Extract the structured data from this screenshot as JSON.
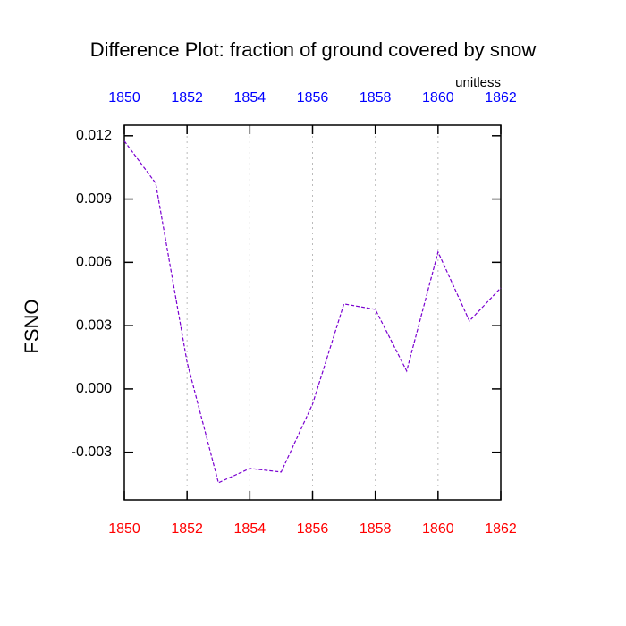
{
  "chart_data": {
    "type": "line",
    "title": "Difference Plot: fraction of ground covered by snow",
    "subtitle": "unitless",
    "y_label": "FSNO",
    "x": [
      1850,
      1851,
      1852,
      1853,
      1854,
      1855,
      1856,
      1857,
      1858,
      1859,
      1860,
      1861,
      1862
    ],
    "series": [
      {
        "color": "#7a00d0",
        "values": [
          0.01175,
          0.00975,
          0.00127,
          -0.00445,
          -0.00377,
          -0.00394,
          -0.00072,
          0.00403,
          0.00377,
          0.00085,
          0.00649,
          0.00322,
          0.00479
        ]
      }
    ],
    "xlim": [
      1850,
      1862
    ],
    "xticks": [
      1850,
      1852,
      1854,
      1856,
      1858,
      1860,
      1862
    ],
    "ylim": [
      -0.00526,
      0.0125
    ],
    "yticks": [
      0.012,
      0.009,
      0.006,
      0.003,
      {
        "value": 0,
        "label": "0.000"
      },
      -0.003
    ],
    "grid": "x",
    "bottom_tick_label_color": "red",
    "top_tick_label_color": "blue"
  }
}
